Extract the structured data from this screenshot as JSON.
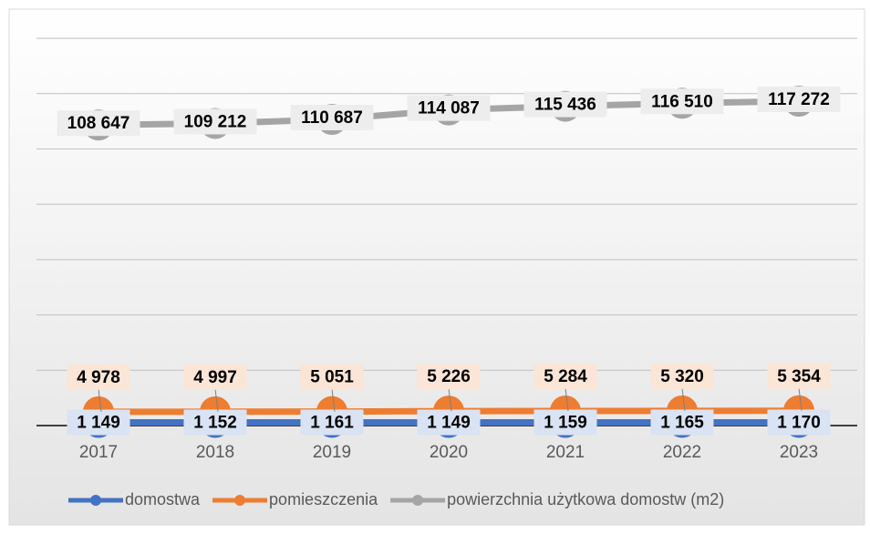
{
  "chart_data": {
    "type": "line",
    "categories": [
      "2017",
      "2018",
      "2019",
      "2020",
      "2021",
      "2022",
      "2023"
    ],
    "series": [
      {
        "name": "domostwa",
        "color": "#4472c4",
        "values": [
          1149,
          1152,
          1161,
          1149,
          1159,
          1165,
          1170
        ],
        "value_labels": [
          "1 149",
          "1 152",
          "1 161",
          "1 149",
          "1 159",
          "1 165",
          "1 170"
        ],
        "label_bg": "#dae3f3"
      },
      {
        "name": "pomieszczenia",
        "color": "#ed7d31",
        "values": [
          4978,
          4997,
          5051,
          5226,
          5284,
          5320,
          5354
        ],
        "value_labels": [
          "4 978",
          "4 997",
          "5 051",
          "5 226",
          "5 284",
          "5 320",
          "5 354"
        ],
        "label_bg": "#fbe5d6"
      },
      {
        "name": "powierzchnia użytkowa domostw (m2)",
        "color": "#a5a5a5",
        "values": [
          108647,
          109212,
          110687,
          114087,
          115436,
          116510,
          117272
        ],
        "value_labels": [
          "108 647",
          "109 212",
          "110 687",
          "114 087",
          "115 436",
          "116 510",
          "117 272"
        ],
        "label_bg": "#ededed"
      }
    ],
    "ylim": [
      0,
      140000
    ],
    "yticks": [
      0,
      20000,
      40000,
      60000,
      80000,
      100000,
      120000,
      140000
    ],
    "grid": true,
    "legend": "bottom"
  }
}
